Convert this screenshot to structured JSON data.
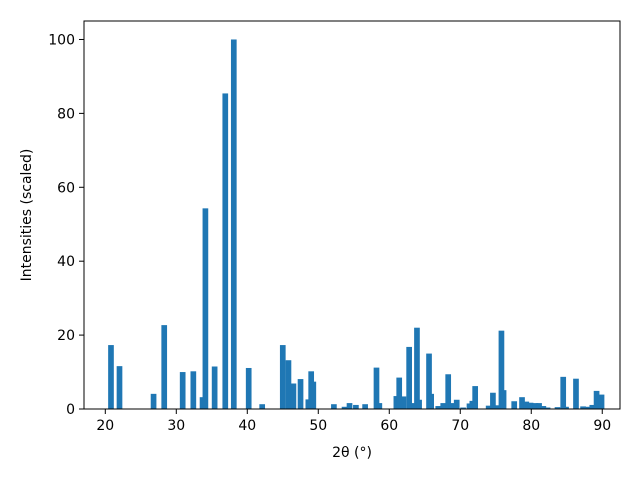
{
  "chart_data": {
    "type": "bar",
    "title": "",
    "xlabel": "2θ (°)",
    "ylabel": "Intensities (scaled)",
    "xlim": [
      17,
      92.5
    ],
    "ylim": [
      0,
      105
    ],
    "xticks": [
      20,
      30,
      40,
      50,
      60,
      70,
      80,
      90
    ],
    "yticks": [
      0,
      20,
      40,
      60,
      80,
      100
    ],
    "grid": false,
    "bar_width": 0.8,
    "bar_color": "#1f77b4",
    "series": [
      {
        "x": [
          20.8,
          22.0,
          26.8,
          28.3,
          30.9,
          32.4,
          33.7,
          34.1,
          35.4,
          36.9,
          38.1,
          40.2,
          42.1,
          45.0,
          45.8,
          46.5,
          47.5,
          48.6,
          49.0,
          49.3,
          52.2,
          53.7,
          54.4,
          55.3,
          56.6,
          58.2,
          58.6,
          61.0,
          61.4,
          62.0,
          62.8,
          63.5,
          63.9,
          64.2,
          65.6,
          65.9,
          66.9,
          67.6,
          68.3,
          68.8,
          69.5,
          70.4,
          71.3,
          71.7,
          72.1,
          74.0,
          74.6,
          75.3,
          75.8,
          76.1,
          77.6,
          78.7,
          79.3,
          79.9,
          80.6,
          81.1,
          81.7,
          82.3,
          83.7,
          84.5,
          84.9,
          86.3,
          87.3,
          87.9,
          88.6,
          89.2,
          89.9
        ],
        "values": [
          17.3,
          11.6,
          4.1,
          22.7,
          10.0,
          10.2,
          3.2,
          54.3,
          11.5,
          85.4,
          100.0,
          11.1,
          1.3,
          17.3,
          13.2,
          6.9,
          8.1,
          2.6,
          10.2,
          7.4,
          1.3,
          0.6,
          1.6,
          1.1,
          1.3,
          11.2,
          1.6,
          3.5,
          8.5,
          3.4,
          16.8,
          1.6,
          22.0,
          2.5,
          15.0,
          4.1,
          0.8,
          1.6,
          9.4,
          1.6,
          2.5,
          0.4,
          1.5,
          2.2,
          6.2,
          0.9,
          4.4,
          1.0,
          21.2,
          5.1,
          2.1,
          3.2,
          2.0,
          1.7,
          1.6,
          1.6,
          0.8,
          0.4,
          0.5,
          8.7,
          0.6,
          8.2,
          0.7,
          0.6,
          1.1,
          4.9,
          3.9
        ]
      }
    ]
  }
}
